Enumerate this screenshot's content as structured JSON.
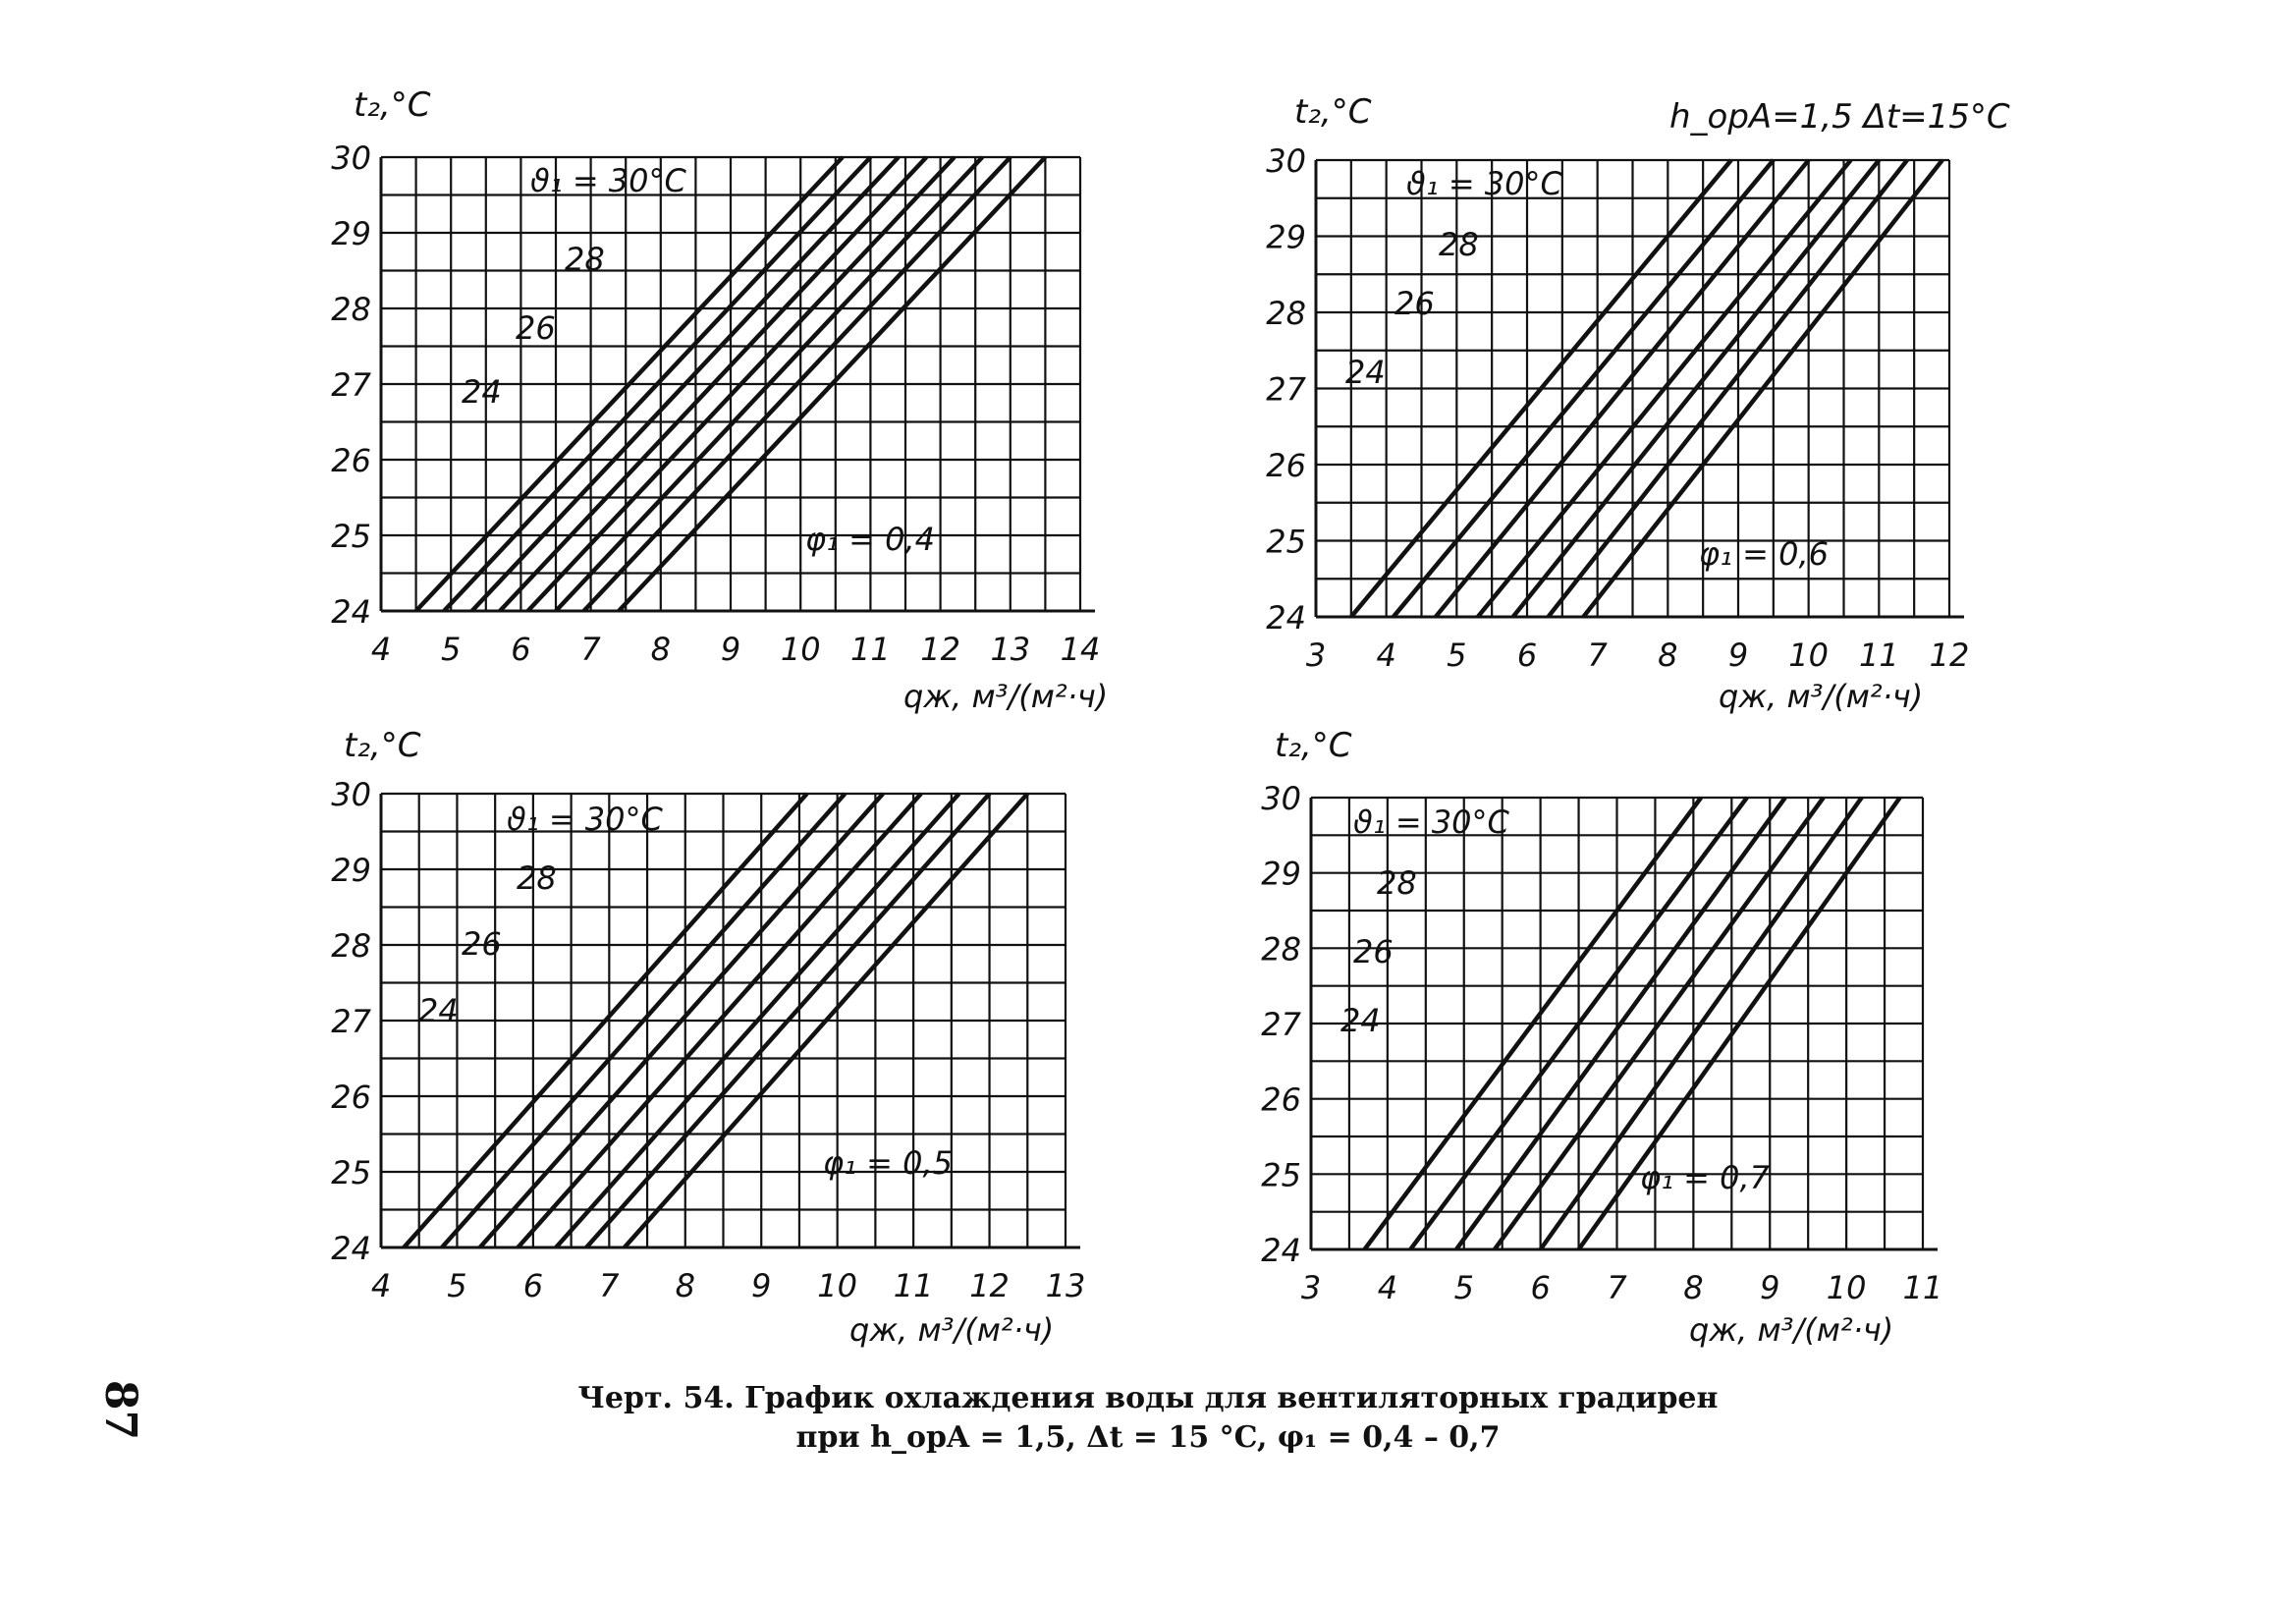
{
  "header_note": "h_opA=1,5   Δt=15°C",
  "caption": {
    "line1": "Черт. 54. График охлаждения воды для вентиляторных градирен",
    "line2": "при h_opA = 1,5, Δt = 15 °C,  φ₁ = 0,4 – 0,7"
  },
  "page_number": "87",
  "chart_data": [
    {
      "type": "line",
      "ylabel": "t₂,°C",
      "xlabel": "qж, м³/(м²·ч)",
      "xlim": [
        4,
        14
      ],
      "ylim": [
        24,
        30
      ],
      "xticks": [
        "4",
        "5",
        "6",
        "7",
        "8",
        "9",
        "10",
        "11",
        "12",
        "13",
        "14"
      ],
      "yticks": [
        "24",
        "25",
        "26",
        "27",
        "28",
        "29",
        "30"
      ],
      "note": "φ₁ = 0,4",
      "curve_labels": [
        "ϑ₁ = 30°C",
        "28",
        "26",
        "24"
      ],
      "series": [
        {
          "name": "24",
          "x": [
            4.5,
            10.6
          ],
          "y": [
            24,
            30
          ]
        },
        {
          "name": "",
          "x": [
            4.9,
            11.0
          ],
          "y": [
            24,
            30
          ]
        },
        {
          "name": "",
          "x": [
            5.3,
            11.4
          ],
          "y": [
            24,
            30
          ]
        },
        {
          "name": "26",
          "x": [
            5.7,
            11.8
          ],
          "y": [
            24,
            30
          ]
        },
        {
          "name": "",
          "x": [
            6.1,
            12.2
          ],
          "y": [
            24,
            30
          ]
        },
        {
          "name": "28",
          "x": [
            6.5,
            12.6
          ],
          "y": [
            24,
            30
          ]
        },
        {
          "name": "",
          "x": [
            6.9,
            13.0
          ],
          "y": [
            24,
            30
          ]
        },
        {
          "name": "ϑ₁ = 30°C",
          "x": [
            7.4,
            13.5
          ],
          "y": [
            24,
            30
          ]
        }
      ]
    },
    {
      "type": "line",
      "ylabel": "t₂,°C",
      "xlabel": "qж, м³/(м²·ч)",
      "xlim": [
        3,
        12
      ],
      "ylim": [
        24,
        30
      ],
      "xticks": [
        "3",
        "4",
        "5",
        "6",
        "7",
        "8",
        "9",
        "10",
        "11",
        "12"
      ],
      "yticks": [
        "24",
        "25",
        "26",
        "27",
        "28",
        "29",
        "30"
      ],
      "note": "φ₁ = 0,6",
      "curve_labels": [
        "ϑ₁ = 30°C",
        "28",
        "26",
        "24"
      ],
      "series": [
        {
          "name": "24",
          "x": [
            3.5,
            8.9
          ],
          "y": [
            24,
            30
          ]
        },
        {
          "name": "",
          "x": [
            4.1,
            9.5
          ],
          "y": [
            24,
            30
          ]
        },
        {
          "name": "",
          "x": [
            4.7,
            10.0
          ],
          "y": [
            24,
            30
          ]
        },
        {
          "name": "26",
          "x": [
            5.3,
            10.6
          ],
          "y": [
            24,
            30
          ]
        },
        {
          "name": "",
          "x": [
            5.8,
            11.0
          ],
          "y": [
            24,
            30
          ]
        },
        {
          "name": "28",
          "x": [
            6.3,
            11.4
          ],
          "y": [
            24,
            30
          ]
        },
        {
          "name": "ϑ₁ = 30°C",
          "x": [
            6.8,
            11.9
          ],
          "y": [
            24,
            30
          ]
        }
      ]
    },
    {
      "type": "line",
      "ylabel": "t₂,°C",
      "xlabel": "qж, м³/(м²·ч)",
      "xlim": [
        4,
        13
      ],
      "ylim": [
        24,
        30
      ],
      "xticks": [
        "4",
        "5",
        "6",
        "7",
        "8",
        "9",
        "10",
        "11",
        "12",
        "13"
      ],
      "yticks": [
        "24",
        "25",
        "26",
        "27",
        "28",
        "29",
        "30"
      ],
      "note": "φ₁ = 0,5",
      "curve_labels": [
        "ϑ₁ = 30°C",
        "28",
        "26",
        "24"
      ],
      "series": [
        {
          "name": "24",
          "x": [
            4.3,
            9.6
          ],
          "y": [
            24,
            30
          ]
        },
        {
          "name": "",
          "x": [
            4.8,
            10.1
          ],
          "y": [
            24,
            30
          ]
        },
        {
          "name": "",
          "x": [
            5.3,
            10.6
          ],
          "y": [
            24,
            30
          ]
        },
        {
          "name": "26",
          "x": [
            5.8,
            11.1
          ],
          "y": [
            24,
            30
          ]
        },
        {
          "name": "",
          "x": [
            6.3,
            11.6
          ],
          "y": [
            24,
            30
          ]
        },
        {
          "name": "28",
          "x": [
            6.7,
            12.0
          ],
          "y": [
            24,
            30
          ]
        },
        {
          "name": "ϑ₁ = 30°C",
          "x": [
            7.2,
            12.5
          ],
          "y": [
            24,
            30
          ]
        }
      ]
    },
    {
      "type": "line",
      "ylabel": "t₂,°C",
      "xlabel": "qж, м³/(м²·ч)",
      "xlim": [
        3,
        11
      ],
      "ylim": [
        24,
        30
      ],
      "xticks": [
        "3",
        "4",
        "5",
        "6",
        "7",
        "8",
        "9",
        "10",
        "11"
      ],
      "yticks": [
        "24",
        "25",
        "26",
        "27",
        "28",
        "29",
        "30"
      ],
      "note": "φ₁ = 0,7",
      "curve_labels": [
        "ϑ₁ = 30°C",
        "28",
        "26",
        "24"
      ],
      "series": [
        {
          "name": "24",
          "x": [
            3.7,
            8.1
          ],
          "y": [
            24,
            30
          ]
        },
        {
          "name": "",
          "x": [
            4.3,
            8.7
          ],
          "y": [
            24,
            30
          ]
        },
        {
          "name": "",
          "x": [
            4.9,
            9.2
          ],
          "y": [
            24,
            30
          ]
        },
        {
          "name": "26",
          "x": [
            5.4,
            9.7
          ],
          "y": [
            24,
            30
          ]
        },
        {
          "name": "28",
          "x": [
            6.0,
            10.2
          ],
          "y": [
            24,
            30
          ]
        },
        {
          "name": "ϑ₁ = 30°C",
          "x": [
            6.5,
            10.7
          ],
          "y": [
            24,
            30
          ]
        }
      ]
    }
  ]
}
